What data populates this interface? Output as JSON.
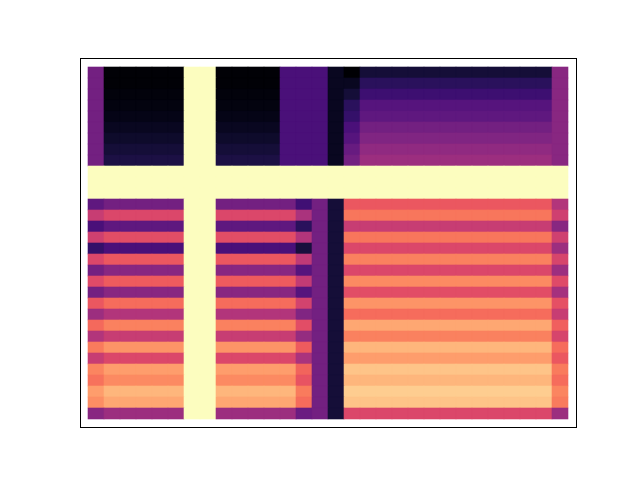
{
  "chart_data": {
    "type": "heatmap",
    "color": "magma",
    "tick_labels": false,
    "cells": [
      [
        35,
        3,
        3,
        3,
        3,
        3,
        100,
        100,
        3,
        3,
        3,
        3,
        25,
        25,
        25,
        8,
        2,
        12,
        12,
        12,
        12,
        12,
        12,
        12,
        12,
        12,
        12,
        12,
        12,
        40
      ],
      [
        35,
        3,
        3,
        3,
        3,
        3,
        100,
        100,
        3,
        3,
        3,
        3,
        25,
        25,
        25,
        8,
        8,
        18,
        18,
        18,
        18,
        18,
        18,
        18,
        18,
        18,
        18,
        18,
        18,
        40
      ],
      [
        35,
        4,
        4,
        4,
        4,
        4,
        100,
        100,
        4,
        4,
        4,
        4,
        25,
        25,
        25,
        8,
        12,
        22,
        22,
        22,
        22,
        22,
        22,
        22,
        22,
        22,
        22,
        22,
        22,
        40
      ],
      [
        35,
        5,
        5,
        5,
        5,
        5,
        100,
        100,
        5,
        5,
        5,
        5,
        25,
        25,
        25,
        8,
        18,
        28,
        28,
        28,
        28,
        28,
        28,
        28,
        28,
        28,
        28,
        28,
        28,
        40
      ],
      [
        35,
        6,
        6,
        6,
        6,
        6,
        100,
        100,
        6,
        6,
        6,
        6,
        25,
        25,
        25,
        8,
        20,
        30,
        30,
        30,
        30,
        30,
        30,
        30,
        30,
        30,
        30,
        30,
        30,
        40
      ],
      [
        35,
        8,
        8,
        8,
        8,
        8,
        100,
        100,
        8,
        8,
        8,
        8,
        25,
        25,
        25,
        8,
        25,
        35,
        35,
        35,
        35,
        35,
        35,
        35,
        35,
        35,
        35,
        35,
        35,
        40
      ],
      [
        35,
        10,
        10,
        10,
        10,
        10,
        100,
        100,
        10,
        10,
        10,
        10,
        25,
        25,
        25,
        8,
        28,
        38,
        38,
        38,
        38,
        38,
        38,
        38,
        38,
        38,
        38,
        38,
        38,
        40
      ],
      [
        35,
        12,
        12,
        12,
        12,
        12,
        100,
        100,
        12,
        12,
        12,
        12,
        25,
        25,
        25,
        8,
        32,
        42,
        42,
        42,
        42,
        42,
        42,
        42,
        42,
        42,
        42,
        42,
        42,
        40
      ],
      [
        35,
        14,
        14,
        14,
        14,
        14,
        100,
        100,
        14,
        14,
        14,
        14,
        25,
        25,
        25,
        8,
        35,
        45,
        45,
        45,
        45,
        45,
        45,
        45,
        45,
        45,
        45,
        45,
        45,
        40
      ],
      [
        100,
        100,
        100,
        100,
        100,
        100,
        100,
        100,
        100,
        100,
        100,
        100,
        100,
        100,
        100,
        100,
        100,
        100,
        100,
        100,
        100,
        100,
        100,
        100,
        100,
        100,
        100,
        100,
        100,
        100
      ],
      [
        100,
        100,
        100,
        100,
        100,
        100,
        100,
        100,
        100,
        100,
        100,
        100,
        100,
        100,
        100,
        100,
        100,
        100,
        100,
        100,
        100,
        100,
        100,
        100,
        100,
        100,
        100,
        100,
        100,
        100
      ],
      [
        100,
        100,
        100,
        100,
        100,
        100,
        100,
        100,
        100,
        100,
        100,
        100,
        100,
        100,
        100,
        100,
        100,
        100,
        100,
        100,
        100,
        100,
        100,
        100,
        100,
        100,
        100,
        100,
        100,
        100
      ],
      [
        30,
        35,
        35,
        35,
        35,
        35,
        100,
        100,
        35,
        35,
        35,
        35,
        35,
        23,
        35,
        12,
        65,
        65,
        65,
        65,
        65,
        65,
        65,
        65,
        65,
        65,
        65,
        65,
        65,
        50
      ],
      [
        55,
        60,
        60,
        60,
        60,
        60,
        100,
        100,
        60,
        60,
        60,
        60,
        60,
        48,
        35,
        12,
        72,
        72,
        72,
        72,
        72,
        72,
        72,
        72,
        72,
        72,
        72,
        72,
        72,
        57
      ],
      [
        25,
        30,
        30,
        30,
        30,
        30,
        100,
        100,
        30,
        30,
        30,
        30,
        30,
        18,
        35,
        12,
        55,
        55,
        55,
        55,
        55,
        55,
        55,
        55,
        55,
        55,
        55,
        55,
        55,
        40
      ],
      [
        57,
        62,
        62,
        62,
        62,
        62,
        100,
        100,
        62,
        62,
        62,
        62,
        62,
        50,
        35,
        12,
        72,
        72,
        72,
        72,
        72,
        72,
        72,
        72,
        72,
        72,
        72,
        72,
        72,
        57
      ],
      [
        20,
        25,
        25,
        25,
        25,
        25,
        100,
        100,
        25,
        25,
        25,
        25,
        25,
        13,
        35,
        12,
        60,
        60,
        60,
        60,
        60,
        60,
        60,
        60,
        60,
        60,
        60,
        60,
        60,
        45
      ],
      [
        60,
        65,
        65,
        65,
        65,
        65,
        100,
        100,
        65,
        65,
        65,
        65,
        65,
        53,
        35,
        12,
        74,
        74,
        74,
        74,
        74,
        74,
        74,
        74,
        74,
        74,
        74,
        74,
        74,
        59
      ],
      [
        35,
        40,
        40,
        40,
        40,
        40,
        100,
        100,
        40,
        40,
        40,
        40,
        40,
        28,
        35,
        12,
        60,
        60,
        60,
        60,
        60,
        60,
        60,
        60,
        60,
        60,
        60,
        60,
        60,
        45
      ],
      [
        61,
        66,
        66,
        66,
        66,
        66,
        100,
        100,
        66,
        66,
        66,
        66,
        66,
        54,
        35,
        12,
        76,
        76,
        76,
        76,
        76,
        76,
        76,
        76,
        76,
        76,
        76,
        76,
        76,
        61
      ],
      [
        35,
        40,
        40,
        40,
        40,
        40,
        100,
        100,
        40,
        40,
        40,
        40,
        40,
        28,
        35,
        12,
        62,
        62,
        62,
        62,
        62,
        62,
        62,
        62,
        62,
        62,
        62,
        62,
        62,
        47
      ],
      [
        65,
        70,
        70,
        70,
        70,
        70,
        100,
        100,
        70,
        70,
        70,
        70,
        70,
        58,
        35,
        12,
        78,
        78,
        78,
        78,
        78,
        78,
        78,
        78,
        78,
        78,
        78,
        78,
        78,
        63
      ],
      [
        45,
        50,
        50,
        50,
        50,
        50,
        100,
        100,
        50,
        50,
        50,
        50,
        50,
        38,
        35,
        12,
        70,
        70,
        70,
        70,
        70,
        70,
        70,
        70,
        70,
        70,
        70,
        70,
        70,
        55
      ],
      [
        69,
        74,
        74,
        74,
        74,
        74,
        100,
        100,
        74,
        74,
        74,
        74,
        74,
        62,
        35,
        12,
        82,
        82,
        82,
        82,
        82,
        82,
        82,
        82,
        82,
        82,
        82,
        82,
        82,
        67
      ],
      [
        50,
        55,
        55,
        55,
        55,
        55,
        100,
        100,
        55,
        55,
        55,
        55,
        55,
        43,
        35,
        12,
        74,
        74,
        74,
        74,
        74,
        74,
        74,
        74,
        74,
        74,
        74,
        74,
        74,
        59
      ],
      [
        73,
        78,
        78,
        78,
        78,
        78,
        100,
        100,
        78,
        78,
        78,
        78,
        78,
        66,
        35,
        12,
        85,
        85,
        85,
        85,
        85,
        85,
        85,
        85,
        85,
        85,
        85,
        85,
        85,
        70
      ],
      [
        55,
        60,
        60,
        60,
        60,
        60,
        100,
        100,
        60,
        60,
        60,
        60,
        60,
        48,
        35,
        12,
        80,
        80,
        80,
        80,
        80,
        80,
        80,
        80,
        80,
        80,
        80,
        80,
        80,
        65
      ],
      [
        75,
        80,
        80,
        80,
        80,
        80,
        100,
        100,
        80,
        80,
        80,
        80,
        80,
        68,
        35,
        12,
        88,
        88,
        88,
        88,
        88,
        88,
        88,
        88,
        88,
        88,
        88,
        88,
        88,
        73
      ],
      [
        71,
        76,
        76,
        76,
        76,
        76,
        100,
        100,
        76,
        76,
        76,
        76,
        76,
        64,
        35,
        12,
        85,
        85,
        85,
        85,
        85,
        85,
        85,
        85,
        85,
        85,
        85,
        85,
        85,
        70
      ],
      [
        80,
        85,
        85,
        85,
        85,
        85,
        100,
        100,
        85,
        85,
        85,
        85,
        85,
        73,
        35,
        12,
        90,
        90,
        90,
        90,
        90,
        90,
        90,
        90,
        90,
        90,
        90,
        90,
        90,
        75
      ],
      [
        77,
        82,
        82,
        82,
        82,
        82,
        100,
        100,
        82,
        82,
        82,
        82,
        82,
        70,
        35,
        12,
        88,
        88,
        88,
        88,
        88,
        88,
        88,
        88,
        88,
        88,
        88,
        88,
        88,
        73
      ],
      [
        40,
        45,
        45,
        45,
        45,
        45,
        100,
        100,
        45,
        45,
        45,
        45,
        45,
        33,
        35,
        12,
        60,
        60,
        60,
        60,
        60,
        60,
        60,
        60,
        60,
        60,
        60,
        60,
        60,
        45
      ]
    ]
  }
}
